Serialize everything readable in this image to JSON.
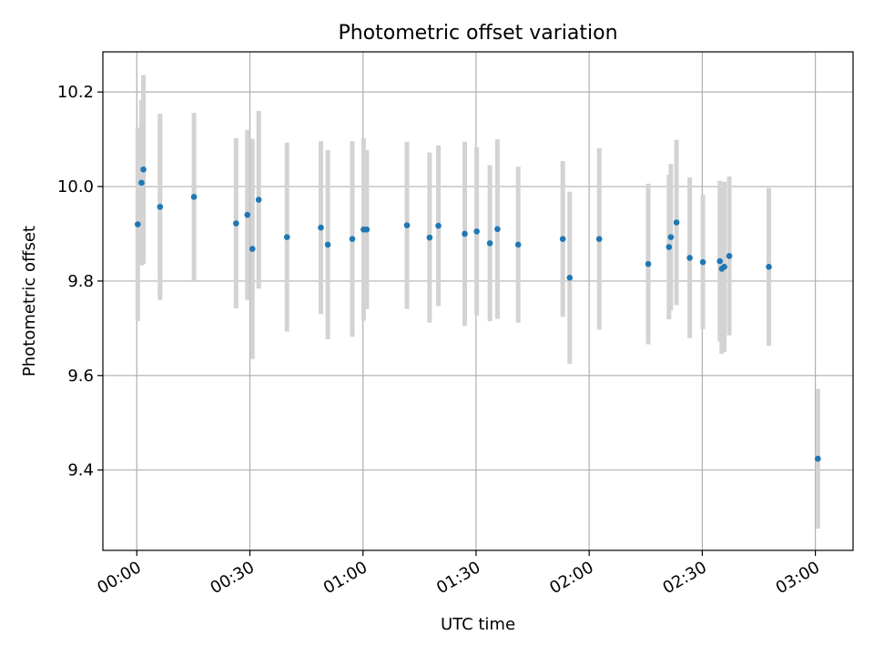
{
  "chart_data": {
    "type": "scatter",
    "title": "Photometric offset variation",
    "xlabel": "UTC time",
    "ylabel": "Photometric offset",
    "xlim": [
      "-00:09",
      "03:10"
    ],
    "ylim": [
      9.23,
      10.285
    ],
    "grid": true,
    "x_ticks": [
      "00:00",
      "00:30",
      "01:00",
      "01:30",
      "02:00",
      "02:30",
      "03:00"
    ],
    "y_ticks": [
      "9.4",
      "9.6",
      "9.8",
      "10.0",
      "10.2"
    ],
    "colors": {
      "point": "#1f77b4",
      "errorbar": "#d3d3d3",
      "grid": "#b0b0b0"
    },
    "points": [
      {
        "x": "00:00:15",
        "y": 9.92,
        "yerr": 0.205
      },
      {
        "x": "00:01:15",
        "y": 10.008,
        "yerr": 0.175
      },
      {
        "x": "00:01:45",
        "y": 10.036,
        "yerr": 0.2
      },
      {
        "x": "00:06:10",
        "y": 9.957,
        "yerr": 0.197
      },
      {
        "x": "00:15:10",
        "y": 9.978,
        "yerr": 0.178
      },
      {
        "x": "00:26:20",
        "y": 9.922,
        "yerr": 0.18
      },
      {
        "x": "00:29:20",
        "y": 9.94,
        "yerr": 0.18
      },
      {
        "x": "00:30:40",
        "y": 9.868,
        "yerr": 0.233
      },
      {
        "x": "00:32:20",
        "y": 9.972,
        "yerr": 0.188
      },
      {
        "x": "00:39:50",
        "y": 9.893,
        "yerr": 0.2
      },
      {
        "x": "00:48:50",
        "y": 9.913,
        "yerr": 0.183
      },
      {
        "x": "00:50:40",
        "y": 9.877,
        "yerr": 0.2
      },
      {
        "x": "00:57:10",
        "y": 9.889,
        "yerr": 0.207
      },
      {
        "x": "01:00:10",
        "y": 9.909,
        "yerr": 0.193
      },
      {
        "x": "01:01:00",
        "y": 9.909,
        "yerr": 0.168
      },
      {
        "x": "01:11:40",
        "y": 9.918,
        "yerr": 0.177
      },
      {
        "x": "01:17:40",
        "y": 9.892,
        "yerr": 0.18
      },
      {
        "x": "01:20:00",
        "y": 9.917,
        "yerr": 0.17
      },
      {
        "x": "01:27:00",
        "y": 9.9,
        "yerr": 0.195
      },
      {
        "x": "01:30:10",
        "y": 9.905,
        "yerr": 0.178
      },
      {
        "x": "01:33:40",
        "y": 9.88,
        "yerr": 0.165
      },
      {
        "x": "01:35:40",
        "y": 9.91,
        "yerr": 0.19
      },
      {
        "x": "01:41:10",
        "y": 9.877,
        "yerr": 0.165
      },
      {
        "x": "01:53:00",
        "y": 9.889,
        "yerr": 0.165
      },
      {
        "x": "01:54:50",
        "y": 9.807,
        "yerr": 0.182
      },
      {
        "x": "02:02:40",
        "y": 9.889,
        "yerr": 0.192
      },
      {
        "x": "02:15:40",
        "y": 9.836,
        "yerr": 0.17
      },
      {
        "x": "02:21:10",
        "y": 9.872,
        "yerr": 0.153
      },
      {
        "x": "02:21:40",
        "y": 9.893,
        "yerr": 0.155
      },
      {
        "x": "02:23:10",
        "y": 9.924,
        "yerr": 0.175
      },
      {
        "x": "02:26:40",
        "y": 9.849,
        "yerr": 0.17
      },
      {
        "x": "02:30:10",
        "y": 9.84,
        "yerr": 0.142
      },
      {
        "x": "02:34:40",
        "y": 9.842,
        "yerr": 0.17
      },
      {
        "x": "02:35:10",
        "y": 9.826,
        "yerr": 0.18
      },
      {
        "x": "02:35:50",
        "y": 9.83,
        "yerr": 0.18
      },
      {
        "x": "02:37:10",
        "y": 9.853,
        "yerr": 0.168
      },
      {
        "x": "02:47:40",
        "y": 9.83,
        "yerr": 0.167
      },
      {
        "x": "03:00:40",
        "y": 9.424,
        "yerr": 0.148
      }
    ]
  }
}
